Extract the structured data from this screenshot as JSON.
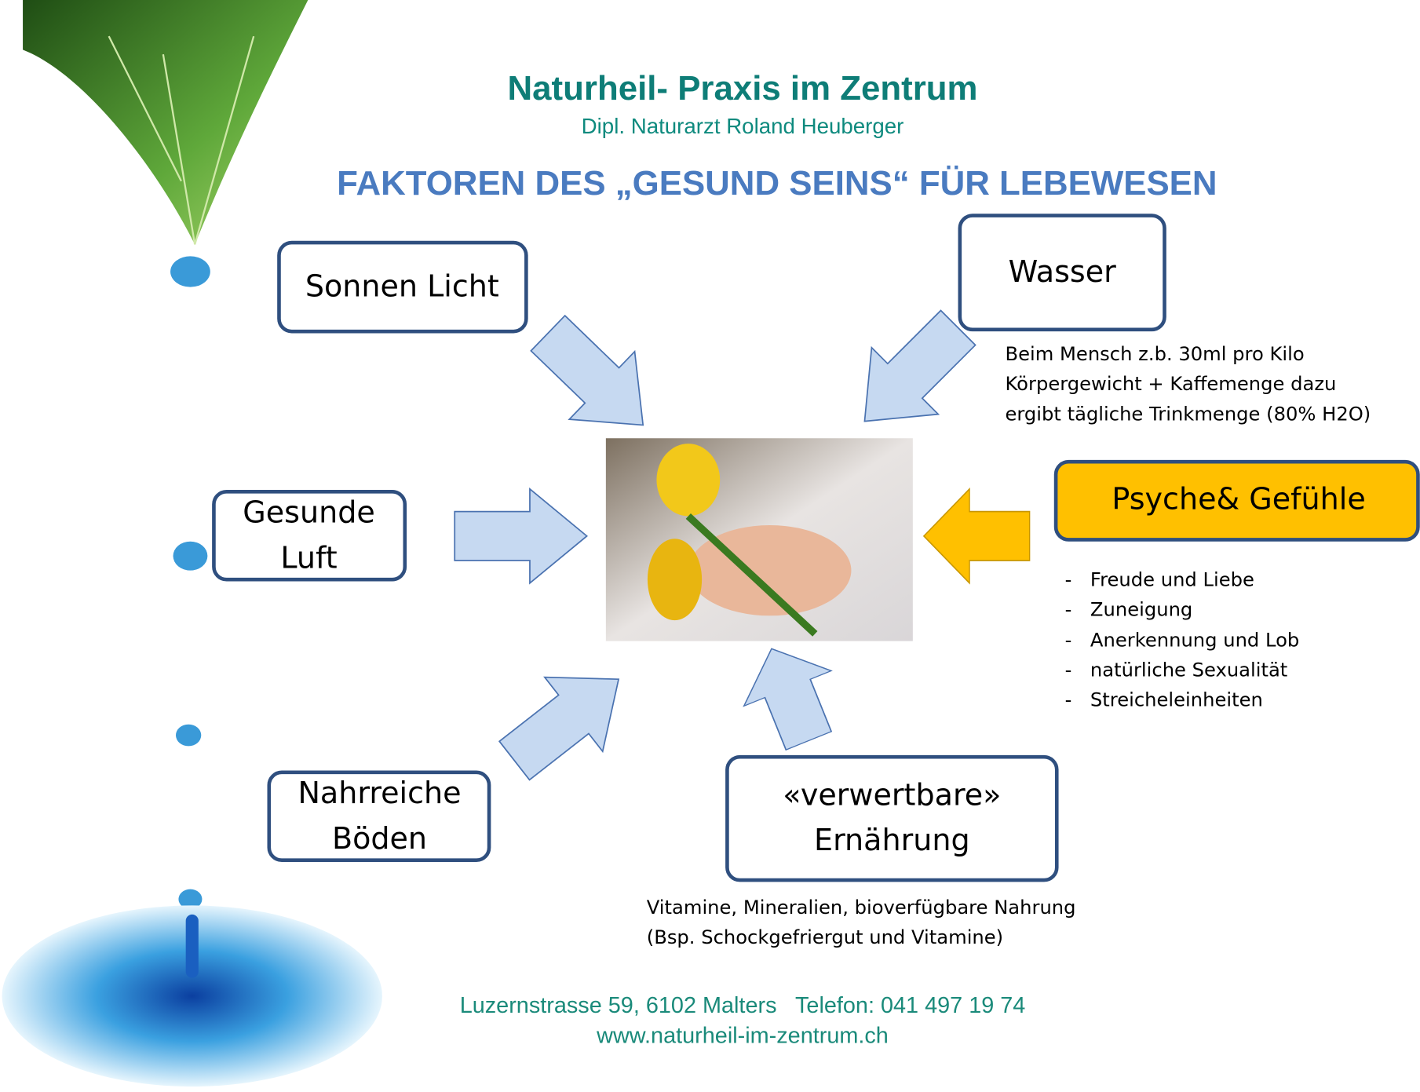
{
  "header": {
    "title": "Naturheil- Praxis im Zentrum",
    "subtitle": "Dipl. Naturarzt Roland Heuberger"
  },
  "heading": "FAKTOREN DES „GESUND SEINS“ FÜR LEBEWESEN",
  "nodes": [
    {
      "lines": [
        "Sonnen Licht"
      ]
    },
    {
      "lines": [
        "Wasser"
      ],
      "note": [
        "Beim Mensch z.b. 30ml pro Kilo",
        "Körpergewicht + Kaffemenge dazu",
        "ergibt tägliche Trinkmenge (80%  H2O)"
      ]
    },
    {
      "lines": [
        "Gesunde",
        "Luft"
      ]
    },
    {
      "lines": [
        "Psyche& Gefühle"
      ],
      "bullet": "-",
      "items": [
        "Freude und Liebe",
        "Zuneigung",
        "Anerkennung und Lob",
        "natürliche Sexualität",
        "Streicheleinheiten"
      ]
    },
    {
      "lines": [
        "Nahrreiche",
        "Böden"
      ]
    },
    {
      "lines": [
        "«verwertbare»",
        "Ernährung"
      ],
      "note": [
        "Vitamine, Mineralien, bioverfügbare Nahrung",
        "(Bsp. Schockgefriergut und Vitamine)"
      ]
    }
  ],
  "footer": [
    "Luzernstrasse 59, 6102 Malters   Telefon: 041 497 19 74",
    "www.naturheil-im-zentrum.ch"
  ]
}
